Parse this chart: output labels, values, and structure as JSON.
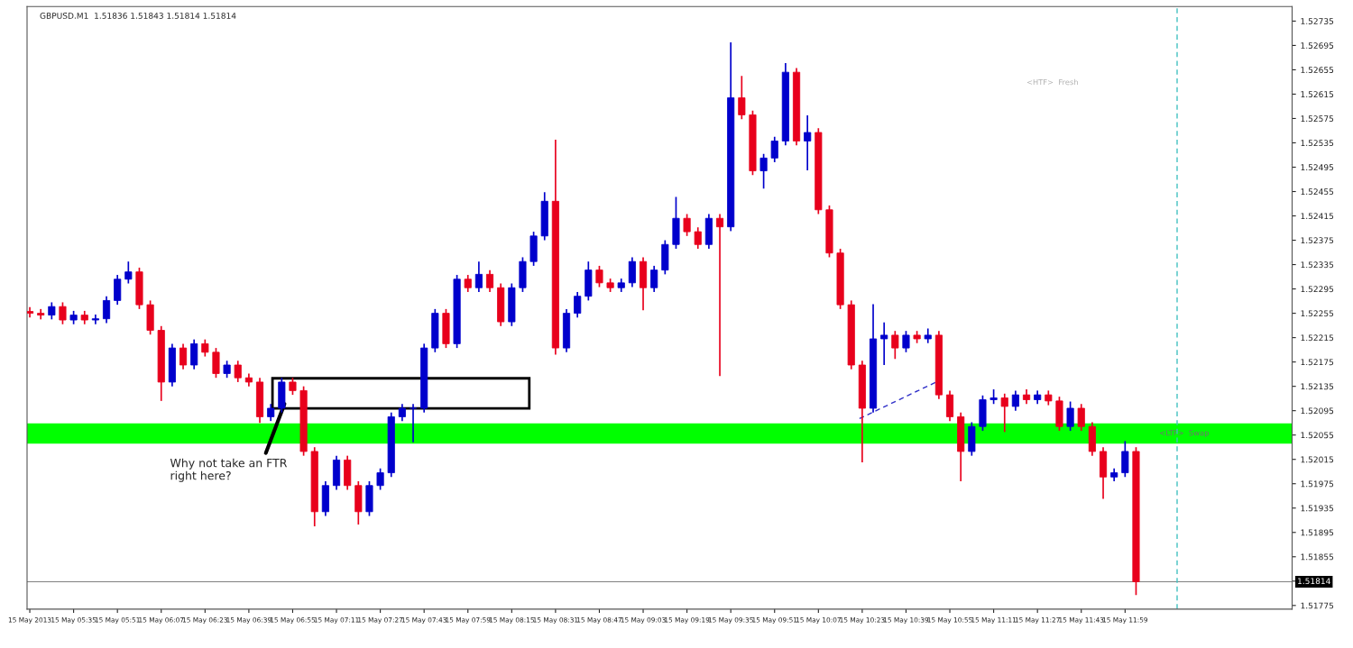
{
  "chart_data": {
    "type": "candlestick",
    "title": "GBPUSD.M1  1.51836 1.51843 1.51814 1.51814",
    "x": [
      "2013-05-15T05:19",
      "2013-05-15T05:23",
      "2013-05-15T05:27",
      "2013-05-15T05:31",
      "2013-05-15T05:35",
      "2013-05-15T05:39",
      "2013-05-15T05:43",
      "2013-05-15T05:47",
      "2013-05-15T05:51",
      "2013-05-15T05:55",
      "2013-05-15T05:59",
      "2013-05-15T06:03",
      "2013-05-15T06:07",
      "2013-05-15T06:11",
      "2013-05-15T06:15",
      "2013-05-15T06:19",
      "2013-05-15T06:23",
      "2013-05-15T06:27",
      "2013-05-15T06:31",
      "2013-05-15T06:35",
      "2013-05-15T06:39",
      "2013-05-15T06:43",
      "2013-05-15T06:47",
      "2013-05-15T06:51",
      "2013-05-15T06:55",
      "2013-05-15T06:59",
      "2013-05-15T07:03",
      "2013-05-15T07:07",
      "2013-05-15T07:11",
      "2013-05-15T07:15",
      "2013-05-15T07:19",
      "2013-05-15T07:23",
      "2013-05-15T07:27",
      "2013-05-15T07:31",
      "2013-05-15T07:35",
      "2013-05-15T07:39",
      "2013-05-15T07:43",
      "2013-05-15T07:47",
      "2013-05-15T07:51",
      "2013-05-15T07:55",
      "2013-05-15T07:59",
      "2013-05-15T08:03",
      "2013-05-15T08:07",
      "2013-05-15T08:11",
      "2013-05-15T08:15",
      "2013-05-15T08:19",
      "2013-05-15T08:23",
      "2013-05-15T08:27",
      "2013-05-15T08:31",
      "2013-05-15T08:35",
      "2013-05-15T08:39",
      "2013-05-15T08:43",
      "2013-05-15T08:47",
      "2013-05-15T08:51",
      "2013-05-15T08:55",
      "2013-05-15T08:59",
      "2013-05-15T09:03",
      "2013-05-15T09:07",
      "2013-05-15T09:11",
      "2013-05-15T09:15",
      "2013-05-15T09:19",
      "2013-05-15T09:23",
      "2013-05-15T09:27",
      "2013-05-15T09:31",
      "2013-05-15T09:35",
      "2013-05-15T09:39",
      "2013-05-15T09:43",
      "2013-05-15T09:47",
      "2013-05-15T09:51",
      "2013-05-15T09:55",
      "2013-05-15T09:59",
      "2013-05-15T10:03",
      "2013-05-15T10:07",
      "2013-05-15T10:11",
      "2013-05-15T10:15",
      "2013-05-15T10:19",
      "2013-05-15T10:23",
      "2013-05-15T10:27",
      "2013-05-15T10:31",
      "2013-05-15T10:35",
      "2013-05-15T10:39",
      "2013-05-15T10:43",
      "2013-05-15T10:47",
      "2013-05-15T10:51",
      "2013-05-15T10:55",
      "2013-05-15T10:59",
      "2013-05-15T11:03",
      "2013-05-15T11:07",
      "2013-05-15T11:11",
      "2013-05-15T11:15",
      "2013-05-15T11:19",
      "2013-05-15T11:23",
      "2013-05-15T11:27",
      "2013-05-15T11:31",
      "2013-05-15T11:35",
      "2013-05-15T11:39",
      "2013-05-15T11:43",
      "2013-05-15T11:47",
      "2013-05-15T11:51",
      "2013-05-15T11:55",
      "2013-05-15T11:59",
      "2013-05-15T12:03"
    ],
    "ohlc": [
      [
        1.52258,
        1.52265,
        1.52248,
        1.52255
      ],
      [
        1.52255,
        1.52262,
        1.52245,
        1.52252
      ],
      [
        1.52252,
        1.52273,
        1.52245,
        1.52266
      ],
      [
        1.52266,
        1.52273,
        1.52237,
        1.52244
      ],
      [
        1.52244,
        1.52259,
        1.52237,
        1.52252
      ],
      [
        1.52252,
        1.52259,
        1.52237,
        1.52244
      ],
      [
        1.52244,
        1.52253,
        1.52237,
        1.52246
      ],
      [
        1.52246,
        1.52283,
        1.52239,
        1.52276
      ],
      [
        1.52276,
        1.52318,
        1.52269,
        1.52311
      ],
      [
        1.52311,
        1.5234,
        1.52304,
        1.52323
      ],
      [
        1.52323,
        1.5233,
        1.52262,
        1.52269
      ],
      [
        1.52269,
        1.52276,
        1.5222,
        1.52227
      ],
      [
        1.52227,
        1.52234,
        1.52111,
        1.52142
      ],
      [
        1.52142,
        1.52205,
        1.52135,
        1.52198
      ],
      [
        1.52198,
        1.52205,
        1.52163,
        1.5217
      ],
      [
        1.5217,
        1.52212,
        1.52163,
        1.52205
      ],
      [
        1.52205,
        1.52212,
        1.52184,
        1.52191
      ],
      [
        1.52191,
        1.52198,
        1.52149,
        1.52156
      ],
      [
        1.52156,
        1.52177,
        1.52149,
        1.5217
      ],
      [
        1.5217,
        1.52177,
        1.52142,
        1.52149
      ],
      [
        1.52149,
        1.52156,
        1.52135,
        1.52142
      ],
      [
        1.52142,
        1.52149,
        1.52075,
        1.52085
      ],
      [
        1.52085,
        1.52106,
        1.52078,
        1.52099
      ],
      [
        1.52099,
        1.52149,
        1.52092,
        1.52142
      ],
      [
        1.52142,
        1.52149,
        1.52121,
        1.52128
      ],
      [
        1.52128,
        1.52135,
        1.52021,
        1.52028
      ],
      [
        1.52028,
        1.52035,
        1.51905,
        1.51929
      ],
      [
        1.51929,
        1.51979,
        1.51922,
        1.51972
      ],
      [
        1.51972,
        1.52021,
        1.51965,
        1.52014
      ],
      [
        1.52014,
        1.52021,
        1.51965,
        1.51972
      ],
      [
        1.51972,
        1.51979,
        1.51908,
        1.51929
      ],
      [
        1.51929,
        1.51979,
        1.51922,
        1.51972
      ],
      [
        1.51972,
        1.52,
        1.51965,
        1.51993
      ],
      [
        1.51993,
        1.52092,
        1.51986,
        1.52085
      ],
      [
        1.52085,
        1.52106,
        1.52078,
        1.52099
      ],
      [
        1.52099,
        1.52106,
        1.52043,
        1.52099
      ],
      [
        1.52099,
        1.52205,
        1.52092,
        1.52198
      ],
      [
        1.52198,
        1.52262,
        1.52191,
        1.52255
      ],
      [
        1.52255,
        1.52262,
        1.52198,
        1.52205
      ],
      [
        1.52205,
        1.52318,
        1.52198,
        1.52311
      ],
      [
        1.52311,
        1.52318,
        1.5229,
        1.52297
      ],
      [
        1.52297,
        1.5234,
        1.5229,
        1.52319
      ],
      [
        1.52319,
        1.52326,
        1.5229,
        1.52297
      ],
      [
        1.52297,
        1.52304,
        1.52234,
        1.52241
      ],
      [
        1.52241,
        1.52304,
        1.52234,
        1.52297
      ],
      [
        1.52297,
        1.52347,
        1.5229,
        1.5234
      ],
      [
        1.5234,
        1.52389,
        1.52333,
        1.52382
      ],
      [
        1.52382,
        1.52454,
        1.52375,
        1.52439
      ],
      [
        1.52439,
        1.5254,
        1.52187,
        1.52198
      ],
      [
        1.52198,
        1.52262,
        1.52191,
        1.52255
      ],
      [
        1.52255,
        1.5229,
        1.52248,
        1.52283
      ],
      [
        1.52283,
        1.5234,
        1.52276,
        1.52326
      ],
      [
        1.52326,
        1.52333,
        1.52298,
        1.52305
      ],
      [
        1.52305,
        1.52312,
        1.5229,
        1.52297
      ],
      [
        1.52297,
        1.52312,
        1.5229,
        1.52305
      ],
      [
        1.52305,
        1.52347,
        1.52298,
        1.5234
      ],
      [
        1.5234,
        1.52347,
        1.5226,
        1.52297
      ],
      [
        1.52297,
        1.52333,
        1.5229,
        1.52326
      ],
      [
        1.52326,
        1.52375,
        1.52319,
        1.52368
      ],
      [
        1.52368,
        1.52446,
        1.52361,
        1.52411
      ],
      [
        1.52411,
        1.52418,
        1.52382,
        1.52389
      ],
      [
        1.52389,
        1.52396,
        1.52361,
        1.52368
      ],
      [
        1.52368,
        1.52418,
        1.52361,
        1.52411
      ],
      [
        1.52411,
        1.52418,
        1.52152,
        1.52397
      ],
      [
        1.52397,
        1.527,
        1.5239,
        1.52609
      ],
      [
        1.52609,
        1.52645,
        1.52574,
        1.52581
      ],
      [
        1.52581,
        1.52588,
        1.52482,
        1.52489
      ],
      [
        1.52489,
        1.52517,
        1.5246,
        1.5251
      ],
      [
        1.5251,
        1.52545,
        1.52503,
        1.52538
      ],
      [
        1.52538,
        1.52666,
        1.52531,
        1.52651
      ],
      [
        1.52651,
        1.52658,
        1.52531,
        1.52538
      ],
      [
        1.52538,
        1.5258,
        1.5249,
        1.52552
      ],
      [
        1.52552,
        1.52559,
        1.52418,
        1.52425
      ],
      [
        1.52425,
        1.52432,
        1.52347,
        1.52354
      ],
      [
        1.52354,
        1.52361,
        1.52262,
        1.52269
      ],
      [
        1.52269,
        1.52276,
        1.52163,
        1.5217
      ],
      [
        1.5217,
        1.52177,
        1.5201,
        1.52099
      ],
      [
        1.52099,
        1.5227,
        1.52092,
        1.52213
      ],
      [
        1.52213,
        1.5224,
        1.5217,
        1.52219
      ],
      [
        1.52219,
        1.52226,
        1.5218,
        1.52198
      ],
      [
        1.52198,
        1.52226,
        1.52191,
        1.52219
      ],
      [
        1.52219,
        1.52226,
        1.52206,
        1.52213
      ],
      [
        1.52213,
        1.5223,
        1.52206,
        1.52219
      ],
      [
        1.52219,
        1.52226,
        1.52114,
        1.52121
      ],
      [
        1.52121,
        1.52128,
        1.52078,
        1.52085
      ],
      [
        1.52085,
        1.52092,
        1.51979,
        1.52028
      ],
      [
        1.52028,
        1.52076,
        1.52021,
        1.52069
      ],
      [
        1.52069,
        1.5212,
        1.52062,
        1.52113
      ],
      [
        1.52113,
        1.5213,
        1.52106,
        1.52116
      ],
      [
        1.52116,
        1.52123,
        1.5206,
        1.52102
      ],
      [
        1.52102,
        1.52128,
        1.52095,
        1.52121
      ],
      [
        1.52121,
        1.5213,
        1.52106,
        1.52113
      ],
      [
        1.52113,
        1.52128,
        1.52106,
        1.52121
      ],
      [
        1.52121,
        1.52128,
        1.52104,
        1.52111
      ],
      [
        1.52111,
        1.52118,
        1.52062,
        1.52069
      ],
      [
        1.52069,
        1.5211,
        1.52062,
        1.52099
      ],
      [
        1.52099,
        1.52106,
        1.52062,
        1.52069
      ],
      [
        1.52069,
        1.52076,
        1.52021,
        1.52028
      ],
      [
        1.52028,
        1.52035,
        1.5195,
        1.51986
      ],
      [
        1.51986,
        1.52,
        1.51979,
        1.51993
      ],
      [
        1.51993,
        1.52045,
        1.51986,
        1.52028
      ],
      [
        1.52028,
        1.52035,
        1.51792,
        1.51814
      ]
    ],
    "colors": [
      "#e8001c",
      "#e8001c",
      "#0000cc",
      "#e8001c",
      "#0000cc",
      "#e8001c",
      "#0000cc",
      "#0000cc",
      "#0000cc",
      "#0000cc",
      "#e8001c",
      "#e8001c",
      "#e8001c",
      "#0000cc",
      "#e8001c",
      "#0000cc",
      "#e8001c",
      "#e8001c",
      "#0000cc",
      "#e8001c",
      "#e8001c",
      "#e8001c",
      "#0000cc",
      "#0000cc",
      "#e8001c",
      "#e8001c",
      "#e8001c",
      "#0000cc",
      "#0000cc",
      "#e8001c",
      "#e8001c",
      "#0000cc",
      "#0000cc",
      "#0000cc",
      "#0000cc",
      "#0000cc",
      "#0000cc",
      "#0000cc",
      "#e8001c",
      "#0000cc",
      "#e8001c",
      "#0000cc",
      "#e8001c",
      "#e8001c",
      "#0000cc",
      "#0000cc",
      "#0000cc",
      "#0000cc",
      "#e8001c",
      "#0000cc",
      "#0000cc",
      "#0000cc",
      "#e8001c",
      "#e8001c",
      "#0000cc",
      "#0000cc",
      "#e8001c",
      "#0000cc",
      "#0000cc",
      "#0000cc",
      "#e8001c",
      "#e8001c",
      "#0000cc",
      "#e8001c",
      "#0000cc",
      "#e8001c",
      "#e8001c",
      "#0000cc",
      "#0000cc",
      "#0000cc",
      "#e8001c",
      "#0000cc",
      "#e8001c",
      "#e8001c",
      "#e8001c",
      "#e8001c",
      "#e8001c",
      "#0000cc",
      "#0000cc",
      "#e8001c",
      "#0000cc",
      "#e8001c",
      "#0000cc",
      "#e8001c",
      "#e8001c",
      "#e8001c",
      "#0000cc",
      "#0000cc",
      "#0000cc",
      "#e8001c",
      "#0000cc",
      "#e8001c",
      "#0000cc",
      "#e8001c",
      "#e8001c",
      "#0000cc",
      "#e8001c",
      "#e8001c",
      "#e8001c",
      "#0000cc",
      "#0000cc",
      "#e8001c"
    ],
    "series": [
      {
        "type": "line",
        "x": [
          "2013-05-15T10:22",
          "2013-05-15T10:50"
        ],
        "values": [
          1.52082,
          1.52142
        ],
        "color": "#3030c8",
        "line_style": "dashed"
      }
    ],
    "xlim": [
      "2013-05-15T05:18",
      "2013-05-15T13:00"
    ],
    "xticks": [
      {
        "value": "2013-05-15T05:19",
        "label": "15 May 2013"
      },
      {
        "value": "2013-05-15T05:35",
        "label": "15 May 05:35"
      },
      {
        "value": "2013-05-15T05:51",
        "label": "15 May 05:51"
      },
      {
        "value": "2013-05-15T06:07",
        "label": "15 May 06:07"
      },
      {
        "value": "2013-05-15T06:23",
        "label": "15 May 06:23"
      },
      {
        "value": "2013-05-15T06:39",
        "label": "15 May 06:39"
      },
      {
        "value": "2013-05-15T06:55",
        "label": "15 May 06:55"
      },
      {
        "value": "2013-05-15T07:11",
        "label": "15 May 07:11"
      },
      {
        "value": "2013-05-15T07:27",
        "label": "15 May 07:27"
      },
      {
        "value": "2013-05-15T07:43",
        "label": "15 May 07:43"
      },
      {
        "value": "2013-05-15T07:59",
        "label": "15 May 07:59"
      },
      {
        "value": "2013-05-15T08:15",
        "label": "15 May 08:15"
      },
      {
        "value": "2013-05-15T08:31",
        "label": "15 May 08:31"
      },
      {
        "value": "2013-05-15T08:47",
        "label": "15 May 08:47"
      },
      {
        "value": "2013-05-15T09:03",
        "label": "15 May 09:03"
      },
      {
        "value": "2013-05-15T09:19",
        "label": "15 May 09:19"
      },
      {
        "value": "2013-05-15T09:35",
        "label": "15 May 09:35"
      },
      {
        "value": "2013-05-15T09:51",
        "label": "15 May 09:51"
      },
      {
        "value": "2013-05-15T10:07",
        "label": "15 May 10:07"
      },
      {
        "value": "2013-05-15T10:23",
        "label": "15 May 10:23"
      },
      {
        "value": "2013-05-15T10:39",
        "label": "15 May 10:39"
      },
      {
        "value": "2013-05-15T10:55",
        "label": "15 May 10:55"
      },
      {
        "value": "2013-05-15T11:11",
        "label": "15 May 11:11"
      },
      {
        "value": "2013-05-15T11:27",
        "label": "15 May 11:27"
      },
      {
        "value": "2013-05-15T11:43",
        "label": "15 May 11:43"
      },
      {
        "value": "2013-05-15T11:59",
        "label": "15 May 11:59"
      }
    ],
    "ylim": [
      1.51769,
      1.52759
    ],
    "yticks": [
      1.51775,
      {
        "value": 1.51815,
        "label": null
      },
      1.51855,
      1.51895,
      1.51935,
      1.51975,
      1.52015,
      1.52055,
      1.52095,
      1.52135,
      1.52175,
      1.52215,
      1.52255,
      1.52295,
      1.52335,
      1.52375,
      1.52415,
      1.52455,
      1.52495,
      1.52535,
      1.52575,
      1.52615,
      1.52655,
      1.52695,
      1.52735
    ],
    "ref_lines": [
      {
        "axis": "y",
        "value": 1.51814,
        "label": "1.51814",
        "color": "#808080",
        "line_style": "solid"
      },
      {
        "axis": "x",
        "value": "2013-05-15T12:18",
        "color": "#40c0c0",
        "line_style": "dashed"
      }
    ],
    "bands": [
      {
        "axis": "y",
        "from": 1.52041,
        "to": 1.52074,
        "label": "<LTF>  Swap",
        "color": "#00ff00"
      }
    ],
    "annotations": [
      {
        "text": "Why not take an FTR\nright here?",
        "x": "2013-05-15T06:52",
        "y": 1.52106
      },
      "<HTF>  Fresh"
    ],
    "grid": false,
    "legend": false
  }
}
